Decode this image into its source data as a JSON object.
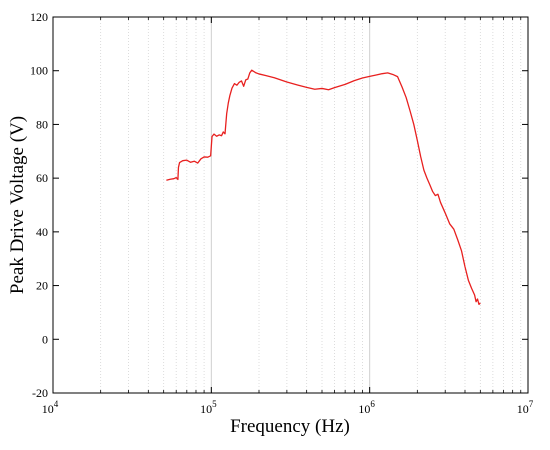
{
  "chart_data": {
    "type": "line",
    "title": "",
    "xlabel": "Frequency (Hz)",
    "ylabel": "Peak Drive Voltage (V)",
    "xscale": "log",
    "xlim": [
      10000,
      10000000
    ],
    "ylim": [
      -20,
      120
    ],
    "grid": {
      "x_major": true,
      "x_minor": true,
      "y": false
    },
    "legend": "none",
    "x_ticks": [
      {
        "value": 10000,
        "base": "10",
        "exp": "4"
      },
      {
        "value": 100000,
        "base": "10",
        "exp": "5"
      },
      {
        "value": 1000000,
        "base": "10",
        "exp": "6"
      },
      {
        "value": 10000000,
        "base": "10",
        "exp": "7"
      }
    ],
    "y_ticks": [
      -20,
      0,
      20,
      40,
      60,
      80,
      100,
      120
    ],
    "series": [
      {
        "color": "#e8201f",
        "points": [
          [
            52000,
            59.2
          ],
          [
            55000,
            59.6
          ],
          [
            58000,
            59.8
          ],
          [
            60000,
            60.2
          ],
          [
            61500,
            59.5
          ],
          [
            62000,
            64.0
          ],
          [
            63000,
            65.8
          ],
          [
            66000,
            66.5
          ],
          [
            70000,
            66.7
          ],
          [
            74000,
            65.9
          ],
          [
            78000,
            66.3
          ],
          [
            82000,
            65.6
          ],
          [
            86000,
            67.2
          ],
          [
            90000,
            67.9
          ],
          [
            95000,
            67.8
          ],
          [
            99000,
            68.3
          ],
          [
            101000,
            75.5
          ],
          [
            104000,
            76.4
          ],
          [
            108000,
            75.6
          ],
          [
            112000,
            76.1
          ],
          [
            116000,
            75.8
          ],
          [
            119000,
            77.2
          ],
          [
            122000,
            76.5
          ],
          [
            125000,
            84.0
          ],
          [
            128000,
            88.0
          ],
          [
            131000,
            90.8
          ],
          [
            135000,
            93.5
          ],
          [
            140000,
            95.2
          ],
          [
            145000,
            94.6
          ],
          [
            150000,
            95.7
          ],
          [
            155000,
            96.2
          ],
          [
            160000,
            94.2
          ],
          [
            165000,
            96.6
          ],
          [
            170000,
            96.9
          ],
          [
            175000,
            99.2
          ],
          [
            180000,
            100.2
          ],
          [
            190000,
            99.3
          ],
          [
            200000,
            98.8
          ],
          [
            220000,
            98.2
          ],
          [
            250000,
            97.4
          ],
          [
            300000,
            95.8
          ],
          [
            350000,
            94.7
          ],
          [
            400000,
            93.8
          ],
          [
            450000,
            93.1
          ],
          [
            500000,
            93.4
          ],
          [
            550000,
            92.9
          ],
          [
            600000,
            93.7
          ],
          [
            700000,
            94.9
          ],
          [
            800000,
            96.3
          ],
          [
            900000,
            97.3
          ],
          [
            1000000,
            97.9
          ],
          [
            1100000,
            98.4
          ],
          [
            1200000,
            98.9
          ],
          [
            1300000,
            99.2
          ],
          [
            1400000,
            98.6
          ],
          [
            1500000,
            97.8
          ],
          [
            1600000,
            94.0
          ],
          [
            1700000,
            90.0
          ],
          [
            1800000,
            85.0
          ],
          [
            1900000,
            80.0
          ],
          [
            2000000,
            74.0
          ],
          [
            2100000,
            68.0
          ],
          [
            2200000,
            63.0
          ],
          [
            2300000,
            60.0
          ],
          [
            2400000,
            57.5
          ],
          [
            2500000,
            55.0
          ],
          [
            2600000,
            53.5
          ],
          [
            2700000,
            54.0
          ],
          [
            2800000,
            51.0
          ],
          [
            3000000,
            47.0
          ],
          [
            3200000,
            43.0
          ],
          [
            3400000,
            41.0
          ],
          [
            3600000,
            37.0
          ],
          [
            3800000,
            33.0
          ],
          [
            4000000,
            27.0
          ],
          [
            4200000,
            22.0
          ],
          [
            4400000,
            19.0
          ],
          [
            4600000,
            16.5
          ],
          [
            4700000,
            14.0
          ],
          [
            4800000,
            15.0
          ],
          [
            4900000,
            13.0
          ],
          [
            5000000,
            13.5
          ]
        ]
      }
    ]
  }
}
